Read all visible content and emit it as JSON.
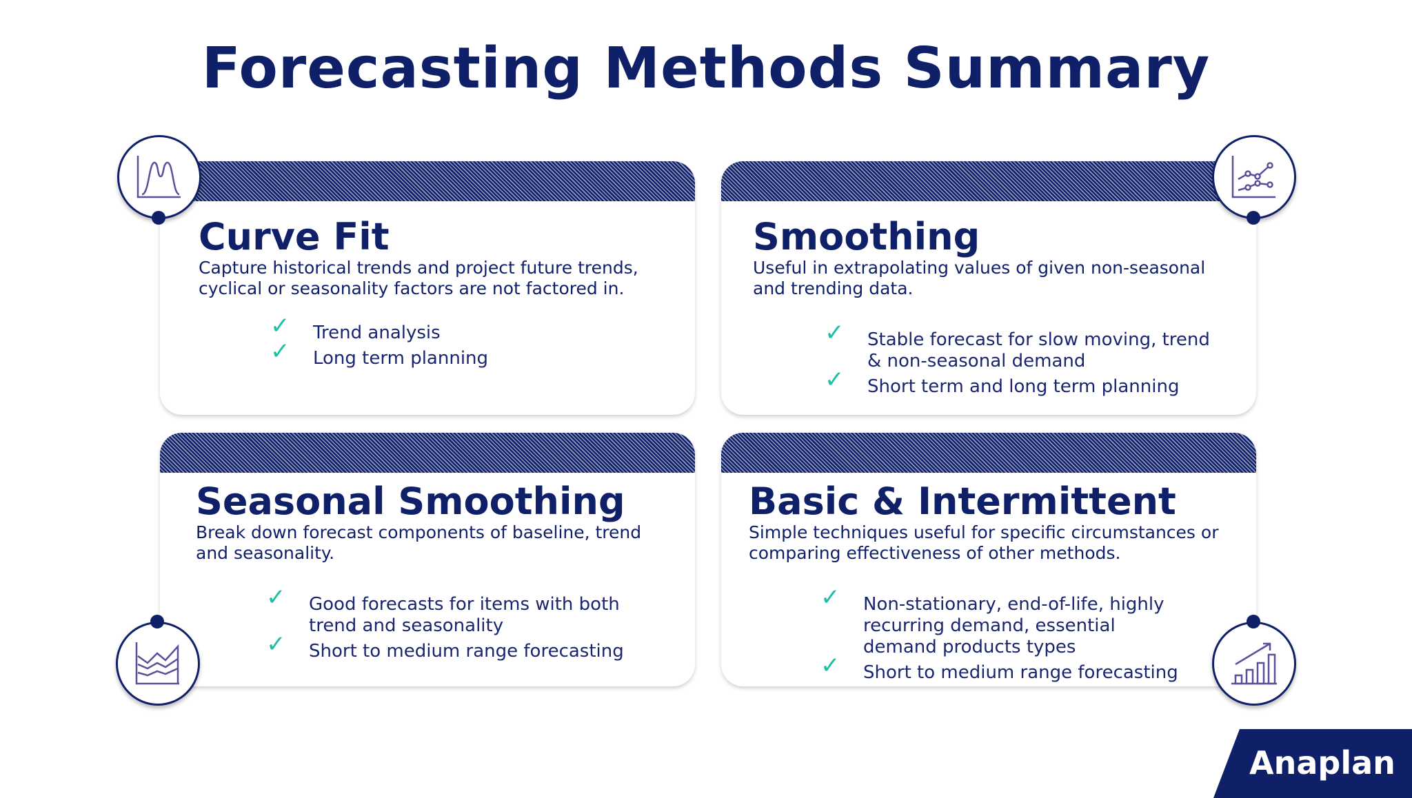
{
  "title": "Forecasting Methods Summary",
  "colors": {
    "navy": "#0f2068",
    "check": "#1fbfa6"
  },
  "cards": [
    {
      "heading": "Curve Fit",
      "description": "Capture historical trends and project future trends, cyclical or seasonality factors are not factored in.",
      "bullets": [
        "Trend analysis",
        "Long term planning"
      ],
      "icon": "bell-curve-chart-icon"
    },
    {
      "heading": "Smoothing",
      "description": "Useful in extrapolating values of given non-seasonal and trending data.",
      "bullets": [
        "Stable forecast for slow moving, trend & non-seasonal demand",
        "Short term and long term planning"
      ],
      "icon": "line-chart-icon"
    },
    {
      "heading": "Seasonal Smoothing",
      "description": "Break down forecast components of baseline, trend and seasonality.",
      "bullets": [
        "Good forecasts for items with both trend and seasonality",
        "Short to medium range forecasting"
      ],
      "icon": "area-chart-icon"
    },
    {
      "heading": "Basic & Intermittent",
      "description": "Simple techniques useful for specific circumstances or comparing effectiveness of other methods.",
      "bullets": [
        "Non-stationary, end-of-life, highly recurring demand, essential demand products types",
        "Short to medium range forecasting"
      ],
      "icon": "growth-bar-chart-icon"
    }
  ],
  "check_glyph": "✓",
  "logo": "Anaplan"
}
